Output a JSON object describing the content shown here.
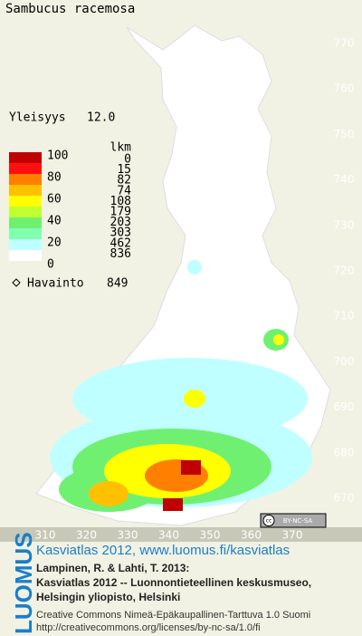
{
  "title": "Sambucus racemosa",
  "frequency": {
    "label": "Yleisyys",
    "value": "12.0"
  },
  "legend": {
    "scale_labels": [
      100,
      80,
      60,
      40,
      20,
      0
    ],
    "count_header": "lkm",
    "counts": [
      0,
      15,
      82,
      74,
      108,
      179,
      203,
      303,
      462,
      836
    ],
    "colors": [
      "#c00000",
      "#ff1010",
      "#ff8000",
      "#ffc000",
      "#ffff00",
      "#c0ff30",
      "#70f070",
      "#80ffb0",
      "#c0ffff",
      "#ffffff"
    ],
    "observation_label": "Havainto",
    "observation_count": 849
  },
  "x_axis": [
    310,
    320,
    330,
    340,
    350,
    360,
    370
  ],
  "y_axis": [
    770,
    760,
    750,
    740,
    730,
    720,
    710,
    700,
    690,
    680,
    670
  ],
  "license_badge": "BY-NC-SA",
  "license_cc": "cc",
  "logo": "LUOMUS",
  "credits": {
    "link": "Kasviatlas 2012, www.luomus.fi/kasviatlas",
    "lines": [
      "Lampinen, R. & Lahti, T. 2013:",
      "Kasviatlas 2012 -- Luonnontieteellinen keskusmuseo,",
      "Helsingin yliopisto, Helsinki"
    ],
    "license_lines": [
      "Creative Commons Nimeä-Epäkaupallinen-Tarttuva 1.0 Suomi",
      "http://creativecommons.org/licenses/by-nc-sa/1.0/fi"
    ]
  }
}
